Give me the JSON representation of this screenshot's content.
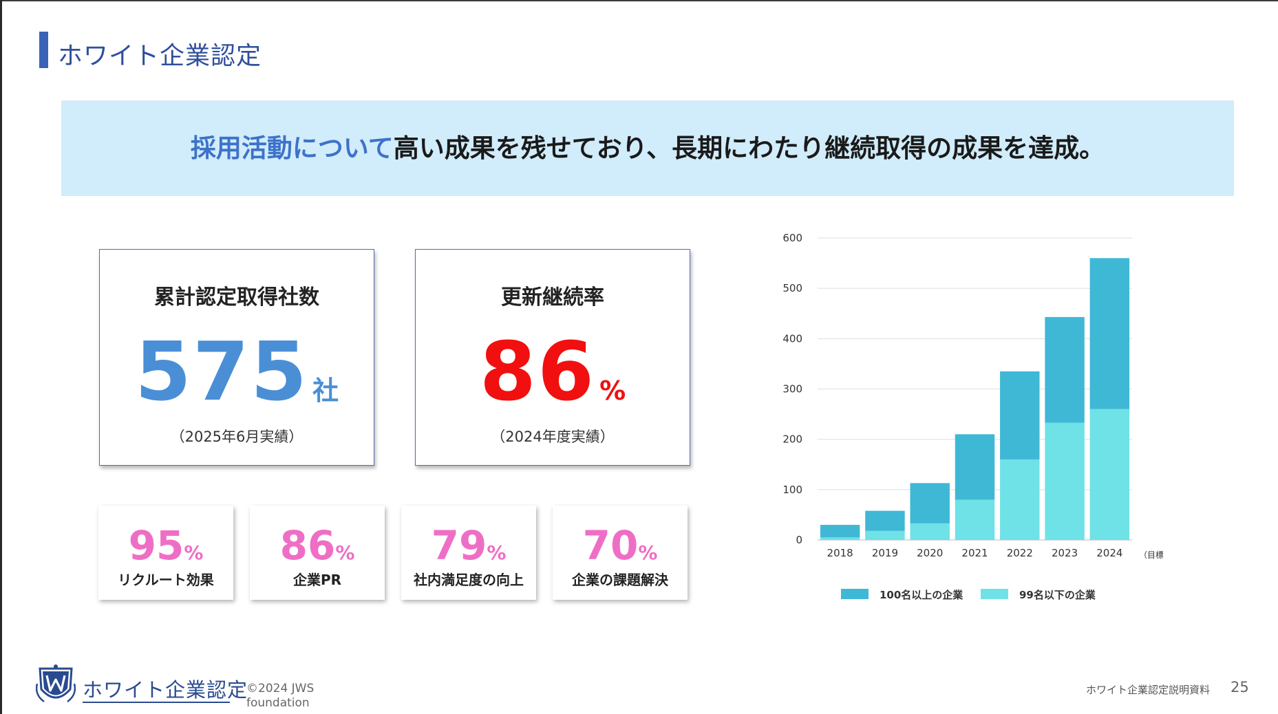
{
  "page": {
    "title": "ホワイト企業認定"
  },
  "banner": {
    "accent": "採用活動について",
    "rest": "高い成果を残せており、長期にわたり継続取得の成果を達成。"
  },
  "kpis": [
    {
      "label": "累計認定取得社数",
      "value": "575",
      "unit": "社",
      "note": "（2025年6月実績）",
      "color": "#4a8fd6"
    },
    {
      "label": "更新継続率",
      "value": "86",
      "unit": "%",
      "note": "（2024年度実績）",
      "color": "#f20f0f"
    }
  ],
  "stats": [
    {
      "value": "95",
      "unit": "%",
      "label": "リクルート効果"
    },
    {
      "value": "86",
      "unit": "%",
      "label": "企業PR"
    },
    {
      "value": "79",
      "unit": "%",
      "label": "社内満足度の向上"
    },
    {
      "value": "70",
      "unit": "%",
      "label": "企業の課題解決"
    }
  ],
  "chart_data": {
    "type": "bar",
    "stacked": true,
    "categories": [
      "2018",
      "2019",
      "2020",
      "2021",
      "2022",
      "2023",
      "2024"
    ],
    "category_note": "（目標）",
    "series": [
      {
        "name": "99名以下の企業",
        "values": [
          5,
          18,
          33,
          80,
          160,
          233,
          260
        ],
        "color": "#6ee2e6"
      },
      {
        "name": "100名以上の企業",
        "values": [
          25,
          40,
          80,
          130,
          175,
          210,
          300
        ],
        "color": "#3fb8d6"
      }
    ],
    "ylim": [
      0,
      600
    ],
    "yticks": [
      0,
      100,
      200,
      300,
      400,
      500,
      600
    ],
    "grid": true,
    "legend_position": "bottom",
    "xlabel": "",
    "ylabel": ""
  },
  "footer": {
    "logo_text": "ホワイト企業認定",
    "copyright": "©2024 JWS foundation",
    "doc_name": "ホワイト企業認定説明資料",
    "page_number": "25"
  }
}
